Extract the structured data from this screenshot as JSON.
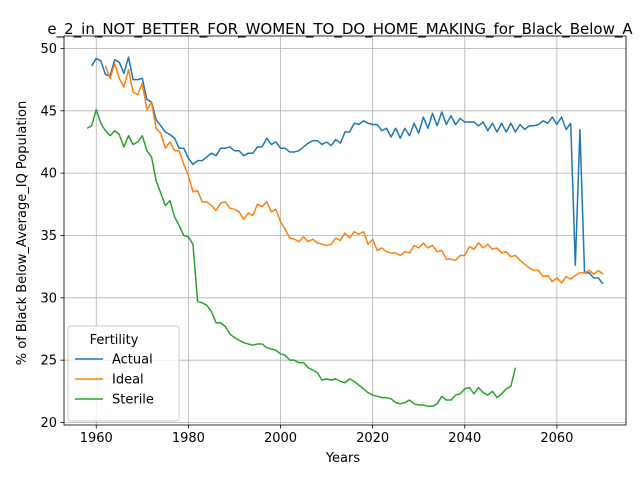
{
  "chart_data": {
    "type": "line",
    "title": "e_2_in_NOT_BETTER_FOR_WOMEN_TO_DO_HOME_MAKING_for_Black_Below_A",
    "xlabel": "Years",
    "ylabel": "% of Black Below_Average_IQ Population",
    "xlim": [
      1953,
      2075
    ],
    "ylim": [
      19.8,
      51.0
    ],
    "x_ticks": [
      1960,
      1980,
      2000,
      2020,
      2040,
      2060
    ],
    "y_ticks": [
      20,
      25,
      30,
      35,
      40,
      45,
      50
    ],
    "grid": true,
    "legend": {
      "title": "Fertility",
      "placement": "lower-left",
      "entries": [
        "Actual",
        "Ideal",
        "Sterile"
      ]
    },
    "series": [
      {
        "name": "Actual",
        "color": "#1f77b4",
        "points": [
          [
            1959,
            48.6
          ],
          [
            1960,
            49.2
          ],
          [
            1961,
            49.0
          ],
          [
            1962,
            47.9
          ],
          [
            1963,
            47.8
          ],
          [
            1964,
            49.1
          ],
          [
            1965,
            48.9
          ],
          [
            1966,
            48.0
          ],
          [
            1967,
            49.3
          ],
          [
            1968,
            47.5
          ],
          [
            1969,
            47.5
          ],
          [
            1970,
            47.6
          ],
          [
            1971,
            45.9
          ],
          [
            1972,
            45.7
          ],
          [
            1973,
            44.3
          ],
          [
            1974,
            43.8
          ],
          [
            1975,
            43.3
          ],
          [
            1976,
            43.1
          ],
          [
            1977,
            42.8
          ],
          [
            1978,
            42.0
          ],
          [
            1979,
            42.0
          ],
          [
            1980,
            41.2
          ],
          [
            1981,
            40.7
          ],
          [
            1982,
            41.0
          ],
          [
            1983,
            41.0
          ],
          [
            1984,
            41.3
          ],
          [
            1985,
            41.6
          ],
          [
            1986,
            41.4
          ],
          [
            1987,
            42.0
          ],
          [
            1988,
            42.0
          ],
          [
            1989,
            42.1
          ],
          [
            1990,
            41.8
          ],
          [
            1991,
            41.8
          ],
          [
            1992,
            41.4
          ],
          [
            1993,
            41.6
          ],
          [
            1994,
            41.6
          ],
          [
            1995,
            42.1
          ],
          [
            1996,
            42.1
          ],
          [
            1997,
            42.8
          ],
          [
            1998,
            42.3
          ],
          [
            1999,
            42.5
          ],
          [
            2000,
            42.0
          ],
          [
            2001,
            42.0
          ],
          [
            2002,
            41.7
          ],
          [
            2003,
            41.7
          ],
          [
            2004,
            41.8
          ],
          [
            2005,
            42.1
          ],
          [
            2006,
            42.4
          ],
          [
            2007,
            42.6
          ],
          [
            2008,
            42.6
          ],
          [
            2009,
            42.3
          ],
          [
            2010,
            42.5
          ],
          [
            2011,
            42.2
          ],
          [
            2012,
            42.7
          ],
          [
            2013,
            42.4
          ],
          [
            2014,
            43.3
          ],
          [
            2015,
            43.3
          ],
          [
            2016,
            44.0
          ],
          [
            2017,
            43.9
          ],
          [
            2018,
            44.2
          ],
          [
            2019,
            44.0
          ],
          [
            2020,
            43.9
          ],
          [
            2021,
            43.9
          ],
          [
            2022,
            43.4
          ],
          [
            2023,
            43.6
          ],
          [
            2024,
            42.9
          ],
          [
            2025,
            43.6
          ],
          [
            2026,
            42.8
          ],
          [
            2027,
            43.6
          ],
          [
            2028,
            43.0
          ],
          [
            2029,
            44.0
          ],
          [
            2030,
            43.2
          ],
          [
            2031,
            44.5
          ],
          [
            2032,
            43.6
          ],
          [
            2033,
            44.8
          ],
          [
            2034,
            43.8
          ],
          [
            2035,
            44.9
          ],
          [
            2036,
            43.9
          ],
          [
            2037,
            44.6
          ],
          [
            2038,
            43.9
          ],
          [
            2039,
            44.4
          ],
          [
            2040,
            44.1
          ],
          [
            2041,
            44.1
          ],
          [
            2042,
            44.1
          ],
          [
            2043,
            43.8
          ],
          [
            2044,
            44.1
          ],
          [
            2045,
            43.4
          ],
          [
            2046,
            44.0
          ],
          [
            2047,
            43.3
          ],
          [
            2048,
            44.0
          ],
          [
            2049,
            43.3
          ],
          [
            2050,
            44.0
          ],
          [
            2051,
            43.3
          ],
          [
            2052,
            43.9
          ],
          [
            2053,
            43.5
          ],
          [
            2054,
            43.8
          ],
          [
            2055,
            43.8
          ],
          [
            2056,
            43.9
          ],
          [
            2057,
            44.2
          ],
          [
            2058,
            44.0
          ],
          [
            2059,
            44.5
          ],
          [
            2060,
            43.9
          ],
          [
            2061,
            44.5
          ],
          [
            2062,
            43.5
          ],
          [
            2063,
            44.0
          ],
          [
            2064,
            32.6
          ],
          [
            2065,
            43.5
          ],
          [
            2066,
            32.0
          ],
          [
            2067,
            32.0
          ],
          [
            2068,
            31.6
          ],
          [
            2069,
            31.6
          ],
          [
            2070,
            31.1
          ]
        ]
      },
      {
        "name": "Ideal",
        "color": "#ff7f0e",
        "points": [
          [
            1962,
            48.6
          ],
          [
            1963,
            47.6
          ],
          [
            1964,
            48.8
          ],
          [
            1965,
            47.6
          ],
          [
            1966,
            46.9
          ],
          [
            1967,
            48.3
          ],
          [
            1968,
            46.5
          ],
          [
            1969,
            46.3
          ],
          [
            1970,
            47.2
          ],
          [
            1971,
            45.1
          ],
          [
            1972,
            45.7
          ],
          [
            1973,
            43.6
          ],
          [
            1974,
            43.2
          ],
          [
            1975,
            42.0
          ],
          [
            1976,
            42.5
          ],
          [
            1977,
            41.8
          ],
          [
            1978,
            41.8
          ],
          [
            1979,
            40.7
          ],
          [
            1980,
            39.8
          ],
          [
            1981,
            38.5
          ],
          [
            1982,
            38.6
          ],
          [
            1983,
            37.7
          ],
          [
            1984,
            37.7
          ],
          [
            1985,
            37.4
          ],
          [
            1986,
            37.0
          ],
          [
            1987,
            37.6
          ],
          [
            1988,
            37.7
          ],
          [
            1989,
            37.2
          ],
          [
            1990,
            37.1
          ],
          [
            1991,
            36.9
          ],
          [
            1992,
            36.3
          ],
          [
            1993,
            36.8
          ],
          [
            1994,
            36.6
          ],
          [
            1995,
            37.5
          ],
          [
            1996,
            37.3
          ],
          [
            1997,
            37.7
          ],
          [
            1998,
            36.9
          ],
          [
            1999,
            37.1
          ],
          [
            2000,
            36.1
          ],
          [
            2001,
            35.5
          ],
          [
            2002,
            34.8
          ],
          [
            2003,
            34.7
          ],
          [
            2004,
            34.5
          ],
          [
            2005,
            34.9
          ],
          [
            2006,
            34.5
          ],
          [
            2007,
            34.7
          ],
          [
            2008,
            34.4
          ],
          [
            2009,
            34.3
          ],
          [
            2010,
            34.2
          ],
          [
            2011,
            34.3
          ],
          [
            2012,
            34.8
          ],
          [
            2013,
            34.6
          ],
          [
            2014,
            35.2
          ],
          [
            2015,
            34.8
          ],
          [
            2016,
            35.3
          ],
          [
            2017,
            35.1
          ],
          [
            2018,
            35.3
          ],
          [
            2019,
            34.3
          ],
          [
            2020,
            34.7
          ],
          [
            2021,
            33.8
          ],
          [
            2022,
            34.0
          ],
          [
            2023,
            33.7
          ],
          [
            2024,
            33.6
          ],
          [
            2025,
            33.6
          ],
          [
            2026,
            33.4
          ],
          [
            2027,
            33.7
          ],
          [
            2028,
            33.6
          ],
          [
            2029,
            34.2
          ],
          [
            2030,
            34.0
          ],
          [
            2031,
            34.4
          ],
          [
            2032,
            34.0
          ],
          [
            2033,
            34.2
          ],
          [
            2034,
            33.7
          ],
          [
            2035,
            33.8
          ],
          [
            2036,
            33.1
          ],
          [
            2037,
            33.1
          ],
          [
            2038,
            33.0
          ],
          [
            2039,
            33.4
          ],
          [
            2040,
            33.4
          ],
          [
            2041,
            34.1
          ],
          [
            2042,
            33.9
          ],
          [
            2043,
            34.4
          ],
          [
            2044,
            34.0
          ],
          [
            2045,
            34.3
          ],
          [
            2046,
            33.9
          ],
          [
            2047,
            34.0
          ],
          [
            2048,
            33.6
          ],
          [
            2049,
            33.7
          ],
          [
            2050,
            33.3
          ],
          [
            2051,
            33.4
          ],
          [
            2052,
            33.0
          ],
          [
            2053,
            32.7
          ],
          [
            2054,
            32.4
          ],
          [
            2055,
            32.2
          ],
          [
            2056,
            32.2
          ],
          [
            2057,
            31.7
          ],
          [
            2058,
            31.8
          ],
          [
            2059,
            31.3
          ],
          [
            2060,
            31.6
          ],
          [
            2061,
            31.2
          ],
          [
            2062,
            31.7
          ],
          [
            2063,
            31.5
          ],
          [
            2064,
            31.8
          ],
          [
            2065,
            32.0
          ],
          [
            2066,
            32.0
          ],
          [
            2067,
            32.2
          ],
          [
            2068,
            31.9
          ],
          [
            2069,
            32.2
          ],
          [
            2070,
            31.9
          ]
        ]
      },
      {
        "name": "Sterile",
        "color": "#2ca02c",
        "points": [
          [
            1958,
            43.6
          ],
          [
            1959,
            43.8
          ],
          [
            1960,
            45.1
          ],
          [
            1961,
            44.0
          ],
          [
            1962,
            43.4
          ],
          [
            1963,
            43.0
          ],
          [
            1964,
            43.4
          ],
          [
            1965,
            43.1
          ],
          [
            1966,
            42.1
          ],
          [
            1967,
            43.0
          ],
          [
            1968,
            42.3
          ],
          [
            1969,
            42.5
          ],
          [
            1970,
            43.0
          ],
          [
            1971,
            41.8
          ],
          [
            1972,
            41.3
          ],
          [
            1973,
            39.4
          ],
          [
            1974,
            38.4
          ],
          [
            1975,
            37.4
          ],
          [
            1976,
            37.8
          ],
          [
            1977,
            36.5
          ],
          [
            1978,
            35.8
          ],
          [
            1979,
            35.0
          ],
          [
            1980,
            34.9
          ],
          [
            1981,
            34.3
          ],
          [
            1982,
            29.7
          ],
          [
            1983,
            29.6
          ],
          [
            1984,
            29.4
          ],
          [
            1985,
            28.9
          ],
          [
            1986,
            28.0
          ],
          [
            1987,
            28.0
          ],
          [
            1988,
            27.7
          ],
          [
            1989,
            27.1
          ],
          [
            1990,
            26.8
          ],
          [
            1991,
            26.6
          ],
          [
            1992,
            26.4
          ],
          [
            1993,
            26.3
          ],
          [
            1994,
            26.2
          ],
          [
            1995,
            26.3
          ],
          [
            1996,
            26.3
          ],
          [
            1997,
            26.0
          ],
          [
            1998,
            25.9
          ],
          [
            1999,
            25.8
          ],
          [
            2000,
            25.5
          ],
          [
            2001,
            25.4
          ],
          [
            2002,
            25.0
          ],
          [
            2003,
            25.0
          ],
          [
            2004,
            24.8
          ],
          [
            2005,
            24.8
          ],
          [
            2006,
            24.4
          ],
          [
            2007,
            24.2
          ],
          [
            2008,
            24.0
          ],
          [
            2009,
            23.4
          ],
          [
            2010,
            23.5
          ],
          [
            2011,
            23.4
          ],
          [
            2012,
            23.5
          ],
          [
            2013,
            23.3
          ],
          [
            2014,
            23.2
          ],
          [
            2015,
            23.5
          ],
          [
            2016,
            23.3
          ],
          [
            2017,
            23.0
          ],
          [
            2018,
            22.7
          ],
          [
            2019,
            22.4
          ],
          [
            2020,
            22.2
          ],
          [
            2021,
            22.1
          ],
          [
            2022,
            22.0
          ],
          [
            2023,
            22.0
          ],
          [
            2024,
            21.9
          ],
          [
            2025,
            21.6
          ],
          [
            2026,
            21.5
          ],
          [
            2027,
            21.6
          ],
          [
            2028,
            21.8
          ],
          [
            2029,
            21.5
          ],
          [
            2030,
            21.4
          ],
          [
            2031,
            21.4
          ],
          [
            2032,
            21.3
          ],
          [
            2033,
            21.3
          ],
          [
            2034,
            21.5
          ],
          [
            2035,
            22.1
          ],
          [
            2036,
            21.8
          ],
          [
            2037,
            21.8
          ],
          [
            2038,
            22.2
          ],
          [
            2039,
            22.3
          ],
          [
            2040,
            22.7
          ],
          [
            2041,
            22.8
          ],
          [
            2042,
            22.3
          ],
          [
            2043,
            22.8
          ],
          [
            2044,
            22.4
          ],
          [
            2045,
            22.2
          ],
          [
            2046,
            22.5
          ],
          [
            2047,
            22.0
          ],
          [
            2048,
            22.3
          ],
          [
            2049,
            22.7
          ],
          [
            2050,
            22.9
          ],
          [
            2051,
            24.4
          ]
        ]
      }
    ]
  }
}
